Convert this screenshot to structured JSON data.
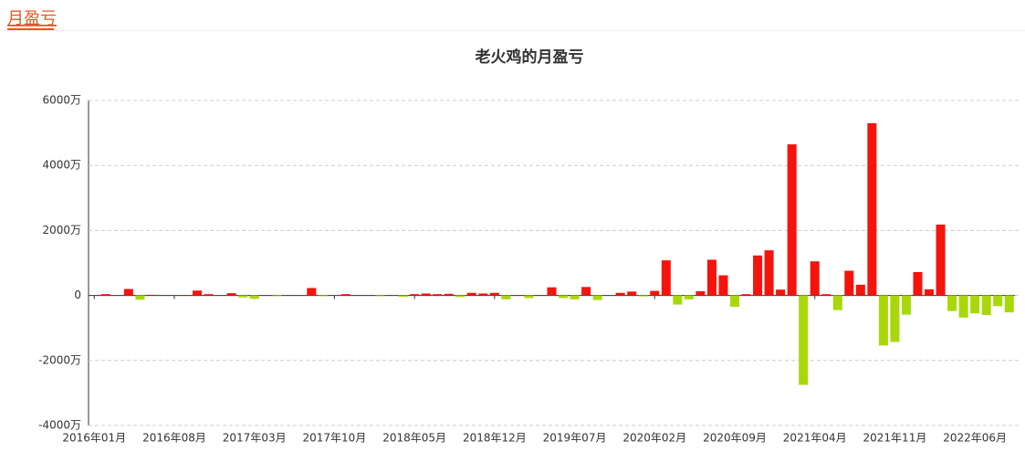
{
  "header": {
    "title": "月盈亏"
  },
  "chart_data": {
    "type": "bar",
    "title": "老火鸡的月盈亏",
    "categories": [
      "2016年01月",
      null,
      null,
      null,
      null,
      null,
      null,
      "2016年08月",
      null,
      null,
      null,
      null,
      null,
      null,
      "2017年03月",
      null,
      null,
      null,
      null,
      null,
      null,
      "2017年10月",
      null,
      null,
      null,
      null,
      null,
      null,
      "2018年05月",
      null,
      null,
      null,
      null,
      null,
      null,
      "2018年12月",
      null,
      null,
      null,
      null,
      null,
      null,
      "2019年07月",
      null,
      null,
      null,
      null,
      null,
      null,
      "2020年02月",
      null,
      null,
      null,
      null,
      null,
      null,
      "2020年09月",
      null,
      null,
      null,
      null,
      null,
      null,
      "2021年04月",
      null,
      null,
      null,
      null,
      null,
      null,
      "2021年11月",
      null,
      null,
      null,
      null,
      null,
      null,
      "2022年06月",
      null,
      null,
      null
    ],
    "values": [
      0,
      40,
      0,
      200,
      -130,
      20,
      0,
      0,
      10,
      150,
      40,
      0,
      70,
      -60,
      -100,
      10,
      -20,
      0,
      0,
      230,
      -20,
      0,
      40,
      0,
      0,
      -20,
      0,
      -40,
      40,
      60,
      40,
      50,
      -50,
      80,
      60,
      80,
      -120,
      10,
      -80,
      0,
      250,
      -80,
      -120,
      260,
      -140,
      0,
      80,
      120,
      -30,
      140,
      1080,
      -280,
      -120,
      130,
      1100,
      620,
      -350,
      40,
      1230,
      1390,
      180,
      4650,
      -2750,
      1050,
      40,
      -450,
      760,
      330,
      5300,
      -1540,
      -1430,
      -590,
      720,
      190,
      2180,
      -480,
      -680,
      -550,
      -600,
      -330,
      -520
    ],
    "positive_color": "#f5140c",
    "negative_color": "#a8d80a",
    "ylim": [
      -4000,
      6000
    ],
    "yticks": [
      {
        "value": -4000,
        "label": "-4000万"
      },
      {
        "value": -2000,
        "label": "-2000万"
      },
      0,
      {
        "value": 2000,
        "label": "2000万"
      },
      {
        "value": 4000,
        "label": "4000万"
      },
      {
        "value": 6000,
        "label": "6000万"
      }
    ],
    "grid": true
  }
}
